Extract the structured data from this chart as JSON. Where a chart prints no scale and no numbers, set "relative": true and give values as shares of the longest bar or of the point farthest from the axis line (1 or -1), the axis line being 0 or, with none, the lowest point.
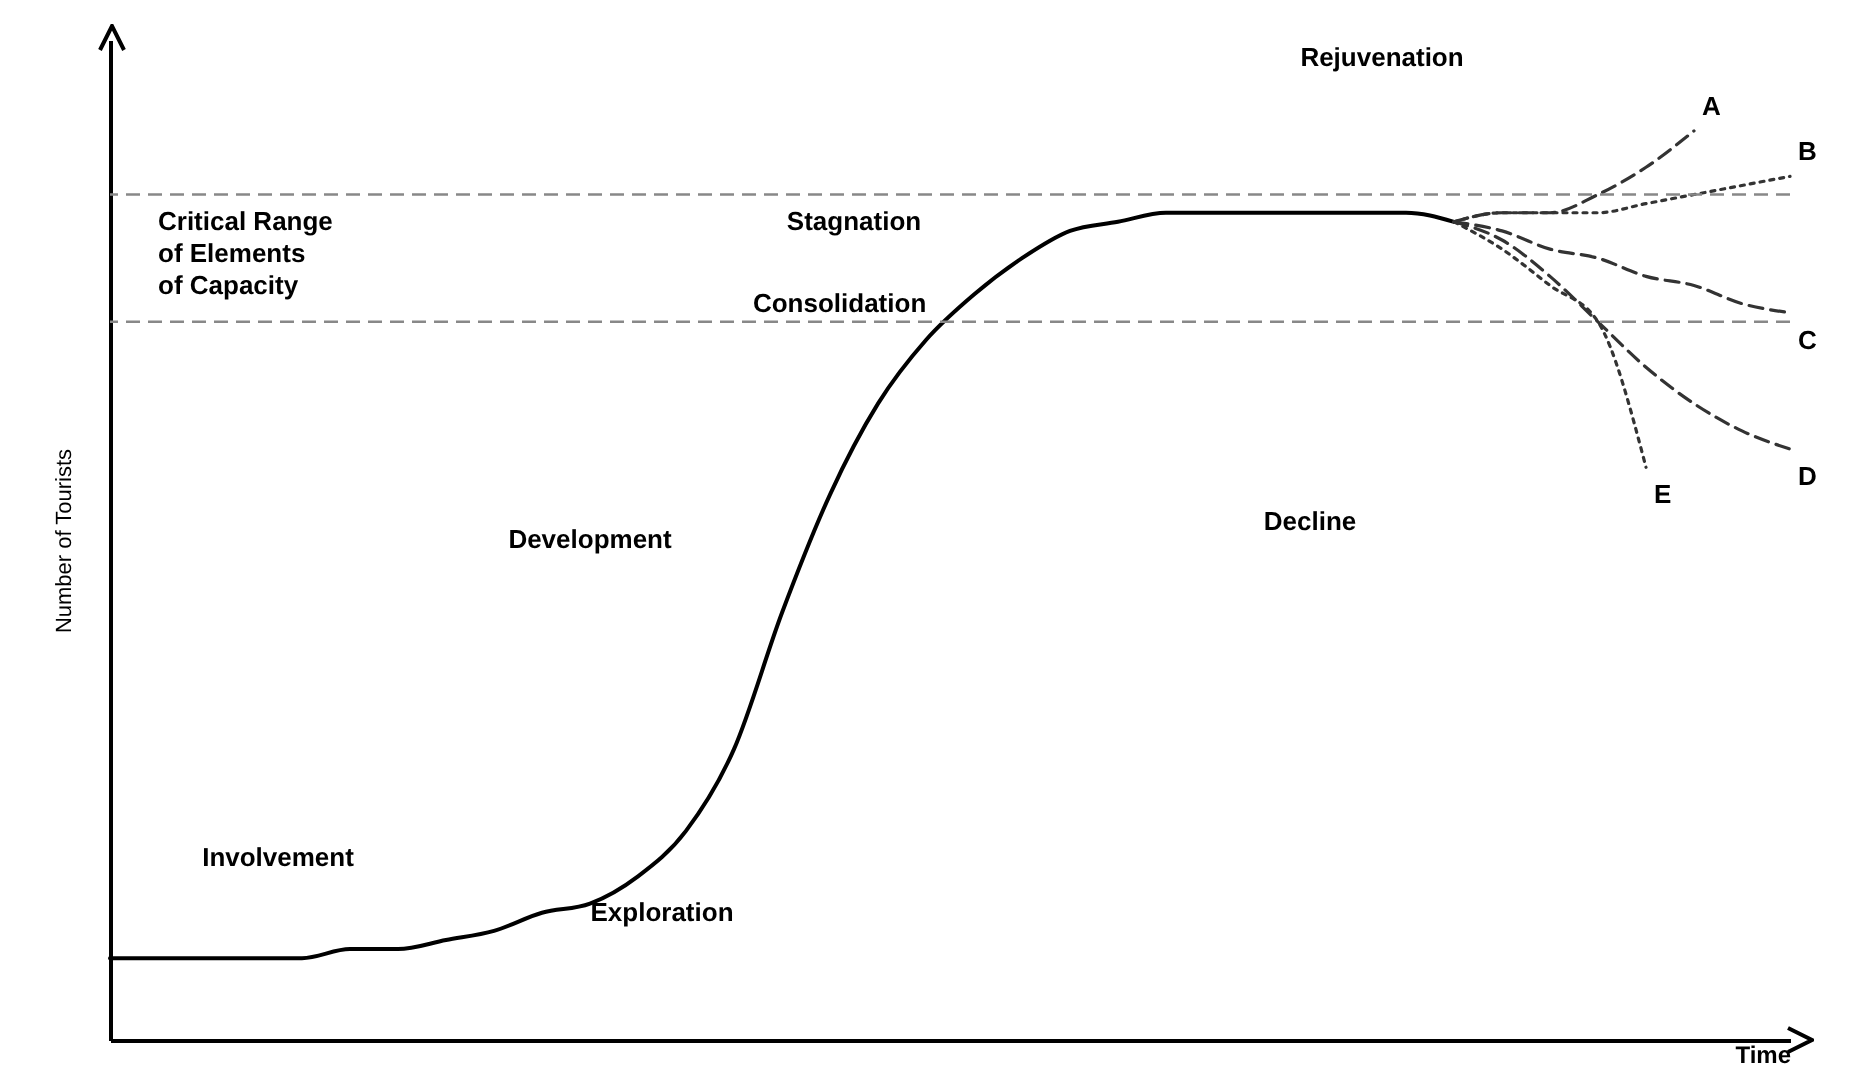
{
  "chart_data": {
    "type": "line",
    "relative": true,
    "xlabel": "Time",
    "ylabel": "Number of Tourists",
    "grid": false,
    "categories": [
      null,
      null,
      null,
      null,
      null,
      null,
      null,
      null,
      null,
      null,
      null,
      null,
      null,
      null,
      null,
      null,
      null,
      null,
      null,
      null,
      null,
      null,
      null,
      null,
      null,
      null,
      null,
      null,
      null,
      null,
      null,
      null,
      null,
      null,
      null,
      null
    ],
    "series": [
      {
        "color": "#000000",
        "line_style": "solid",
        "values": [
          0.09,
          0.09,
          0.09,
          0.09,
          0.09,
          0.1,
          0.1,
          0.11,
          0.12,
          0.14,
          0.15,
          0.18,
          0.23,
          0.32,
          0.47,
          0.6,
          0.7,
          0.77,
          0.82,
          0.86,
          0.89,
          0.9,
          0.91,
          0.91,
          0.91,
          0.91,
          0.91,
          0.91,
          0.9,
          null,
          null,
          null,
          null,
          null,
          null,
          null
        ]
      },
      {
        "name": "A",
        "color": "#333333",
        "line_style": "dashed",
        "values": [
          null,
          null,
          null,
          null,
          null,
          null,
          null,
          null,
          null,
          null,
          null,
          null,
          null,
          null,
          null,
          null,
          null,
          null,
          null,
          null,
          null,
          null,
          null,
          null,
          null,
          null,
          null,
          null,
          0.9,
          0.91,
          0.91,
          0.93,
          0.96,
          1.0,
          null,
          null
        ]
      },
      {
        "name": "B",
        "color": "#333333",
        "line_style": "dotted",
        "values": [
          null,
          null,
          null,
          null,
          null,
          null,
          null,
          null,
          null,
          null,
          null,
          null,
          null,
          null,
          null,
          null,
          null,
          null,
          null,
          null,
          null,
          null,
          null,
          null,
          null,
          null,
          null,
          null,
          0.9,
          0.91,
          0.91,
          0.91,
          0.92,
          0.93,
          0.94,
          0.95
        ]
      },
      {
        "name": "C",
        "color": "#333333",
        "line_style": "dashed",
        "values": [
          null,
          null,
          null,
          null,
          null,
          null,
          null,
          null,
          null,
          null,
          null,
          null,
          null,
          null,
          null,
          null,
          null,
          null,
          null,
          null,
          null,
          null,
          null,
          null,
          null,
          null,
          null,
          null,
          0.9,
          0.89,
          0.87,
          0.86,
          0.84,
          0.83,
          0.81,
          0.8
        ]
      },
      {
        "name": "D",
        "color": "#333333",
        "line_style": "dashed",
        "values": [
          null,
          null,
          null,
          null,
          null,
          null,
          null,
          null,
          null,
          null,
          null,
          null,
          null,
          null,
          null,
          null,
          null,
          null,
          null,
          null,
          null,
          null,
          null,
          null,
          null,
          null,
          null,
          null,
          0.9,
          0.88,
          0.84,
          0.79,
          0.74,
          0.7,
          0.67,
          0.65
        ]
      },
      {
        "name": "E",
        "color": "#333333",
        "line_style": "dotted",
        "values": [
          null,
          null,
          null,
          null,
          null,
          null,
          null,
          null,
          null,
          null,
          null,
          null,
          null,
          null,
          null,
          null,
          null,
          null,
          null,
          null,
          null,
          null,
          null,
          null,
          null,
          null,
          null,
          null,
          0.9,
          0.87,
          0.83,
          0.79,
          0.63,
          null,
          null,
          null
        ]
      }
    ],
    "ref_lines": [
      {
        "axis": "y",
        "value": 0.93,
        "color": "#888888",
        "line_style": "dashed"
      },
      {
        "axis": "y",
        "value": 0.79,
        "color": "#888888",
        "line_style": "dashed"
      }
    ],
    "annotations": [
      "Rejuvenation",
      "Critical Range\nof Elements\nof Capacity",
      "Stagnation",
      "Consolidation",
      "Development",
      "Decline",
      "Involvement",
      "Exploration"
    ]
  }
}
